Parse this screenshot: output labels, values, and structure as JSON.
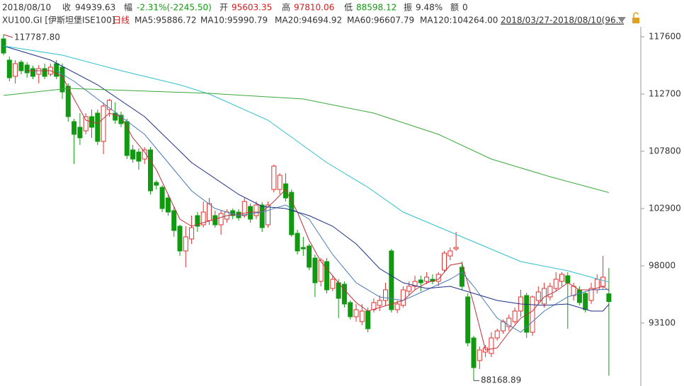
{
  "chart_data": {
    "type": "candlestick",
    "header": [
      {
        "label": "2018/08/10",
        "value": null
      },
      {
        "label": "收",
        "value": "94939.63"
      },
      {
        "label": "幅",
        "value": "-2.31%(-2245.50)"
      },
      {
        "label": "开",
        "value": "95603.35"
      },
      {
        "label": "高",
        "value": "97810.06"
      },
      {
        "label": "低",
        "value": "88598.12"
      },
      {
        "label": "振",
        "value": "9.48%"
      },
      {
        "label": "额",
        "value": "0"
      }
    ],
    "symbol": "XU100.GI [伊斯坦堡ISE100]",
    "period": "日线",
    "date_range": "2018/03/27-2018/08/10(96...",
    "up_color": "#e03030",
    "down_color": "#119911",
    "ylim": [
      87713,
      118326
    ],
    "yticks": [
      117600,
      112700,
      107800,
      102900,
      98000,
      93100
    ],
    "annotations": [
      "117787.80",
      "88168.89"
    ],
    "ohlc": [
      [
        117418,
        117787.8,
        116027,
        116208
      ],
      [
        115604,
        115906,
        113788,
        114091
      ],
      [
        114212,
        115604,
        113607,
        115301
      ],
      [
        115422,
        115604,
        114394,
        114696
      ],
      [
        115180,
        115422,
        114091,
        114514
      ],
      [
        114878,
        115120,
        113970,
        114212
      ],
      [
        114394,
        115180,
        113607,
        114878
      ],
      [
        114878,
        115301,
        113970,
        114212
      ],
      [
        114394,
        115301,
        114212,
        114998
      ],
      [
        115301,
        115604,
        113970,
        114212
      ],
      [
        114998,
        115301,
        112276,
        112881
      ],
      [
        113365,
        113607,
        110340,
        110764
      ],
      [
        110340,
        110582,
        106710,
        109251
      ],
      [
        109856,
        111066,
        108343,
        108948
      ],
      [
        109553,
        111066,
        109251,
        110764
      ],
      [
        110764,
        111369,
        108948,
        109856
      ],
      [
        111066,
        111369,
        108343,
        108646
      ],
      [
        108646,
        111974,
        107557,
        111671
      ],
      [
        111369,
        112276,
        110764,
        112155
      ],
      [
        111066,
        111974,
        110159,
        110461
      ],
      [
        110885,
        111187,
        109856,
        110159
      ],
      [
        110340,
        110582,
        107134,
        107436
      ],
      [
        107920,
        108343,
        106831,
        107134
      ],
      [
        107738,
        108041,
        106226,
        106952
      ],
      [
        107134,
        108162,
        106710,
        107920
      ],
      [
        107920,
        108162,
        104108,
        104411
      ],
      [
        105137,
        105318,
        104532,
        104895
      ],
      [
        104714,
        104895,
        102596,
        102898
      ],
      [
        103806,
        104108,
        102294,
        102596
      ],
      [
        102717,
        103080,
        100478,
        101022
      ],
      [
        101386,
        101507,
        98845,
        99269
      ],
      [
        99269,
        101386,
        97877,
        100478
      ],
      [
        100297,
        102294,
        99874,
        101265
      ],
      [
        102294,
        102596,
        100902,
        101386
      ],
      [
        101507,
        103503,
        101265,
        102596
      ],
      [
        101870,
        103806,
        101507,
        103322
      ],
      [
        102294,
        102717,
        101265,
        101507
      ],
      [
        101507,
        102717,
        100660,
        102475
      ],
      [
        101991,
        102838,
        101689,
        102596
      ],
      [
        102717,
        102898,
        101991,
        102294
      ],
      [
        102596,
        102838,
        101870,
        102112
      ],
      [
        102294,
        103806,
        102112,
        103503
      ],
      [
        103080,
        103322,
        101689,
        101991
      ],
      [
        102294,
        103503,
        101991,
        103201
      ],
      [
        103201,
        103443,
        100902,
        101265
      ],
      [
        101507,
        103503,
        101265,
        103201
      ],
      [
        104532,
        106649,
        104290,
        106528
      ],
      [
        104532,
        105924,
        104108,
        105742
      ],
      [
        105016,
        105924,
        103503,
        103806
      ],
      [
        104290,
        104532,
        100478,
        100660
      ],
      [
        100781,
        101084,
        98966,
        99269
      ],
      [
        99571,
        100478,
        98845,
        99450
      ],
      [
        99692,
        99874,
        97635,
        97877
      ],
      [
        98664,
        98966,
        95336,
        96546
      ],
      [
        96667,
        98664,
        96244,
        98482
      ],
      [
        98361,
        98664,
        95639,
        95941
      ],
      [
        96062,
        97151,
        95820,
        96848
      ],
      [
        96546,
        96848,
        93521,
        95215
      ],
      [
        96425,
        96667,
        94428,
        94731
      ],
      [
        94852,
        95033,
        93400,
        93642
      ],
      [
        93642,
        94731,
        93219,
        94247
      ],
      [
        93219,
        94731,
        92916,
        94126
      ],
      [
        94126,
        94428,
        92311,
        92614
      ],
      [
        94247,
        95215,
        94005,
        94852
      ],
      [
        94610,
        95457,
        94126,
        95033
      ],
      [
        95033,
        96546,
        94610,
        95941
      ],
      [
        99269,
        99450,
        94005,
        94247
      ],
      [
        94247,
        95033,
        93944,
        94731
      ],
      [
        94610,
        96244,
        94428,
        95941
      ],
      [
        95820,
        96667,
        95457,
        96244
      ],
      [
        96244,
        97151,
        95941,
        96667
      ],
      [
        96788,
        97151,
        95820,
        96546
      ],
      [
        96667,
        97454,
        96425,
        97030
      ],
      [
        96848,
        97272,
        96425,
        96667
      ],
      [
        96667,
        97454,
        96244,
        97272
      ],
      [
        97635,
        99269,
        97454,
        99087
      ],
      [
        98845,
        99571,
        98482,
        99269
      ],
      [
        99450,
        100902,
        99269,
        99571
      ],
      [
        97877,
        98361,
        95941,
        96244
      ],
      [
        95336,
        95639,
        91101,
        91403
      ],
      [
        91827,
        92008,
        88168.89,
        89286
      ],
      [
        89891,
        91101,
        89165,
        90798
      ],
      [
        90617,
        91222,
        90193,
        90980
      ],
      [
        90496,
        92311,
        90193,
        91827
      ],
      [
        91827,
        92614,
        91585,
        92432
      ],
      [
        92432,
        93400,
        92190,
        93219
      ],
      [
        92795,
        93824,
        92432,
        93521
      ],
      [
        93219,
        94428,
        93037,
        94126
      ],
      [
        94126,
        95941,
        93642,
        95336
      ],
      [
        95457,
        95699,
        91827,
        92311
      ],
      [
        92311,
        95457,
        92008,
        95336
      ],
      [
        95033,
        96244,
        94731,
        95760
      ],
      [
        94731,
        96546,
        94428,
        96062
      ],
      [
        95336,
        96546,
        95033,
        96244
      ],
      [
        96062,
        97454,
        95820,
        96848
      ],
      [
        96667,
        97454,
        96244,
        97272
      ],
      [
        97151,
        97454,
        92614,
        96546
      ],
      [
        95457,
        96546,
        95033,
        96244
      ],
      [
        95941,
        96244,
        94610,
        94852
      ],
      [
        95639,
        95820,
        94005,
        94247
      ],
      [
        95033,
        96546,
        94731,
        96062
      ],
      [
        95941,
        97272,
        95639,
        96848
      ],
      [
        96244,
        98845,
        95941,
        97030
      ],
      [
        95603.35,
        97810.06,
        88598.12,
        94939.63
      ]
    ],
    "series": [
      {
        "name": "MA5:95886.72",
        "color": "#c0303a",
        "x": [
          4,
          8,
          10,
          12,
          14,
          16,
          18,
          20,
          22,
          24,
          26,
          28,
          30,
          32,
          34,
          36,
          38,
          40,
          42,
          44,
          46,
          48,
          50,
          52,
          54,
          56,
          58,
          60,
          62,
          64,
          66,
          68,
          70,
          72,
          74,
          76,
          78,
          80,
          82,
          84,
          86,
          88,
          90,
          92,
          94,
          96,
          98,
          100,
          102,
          103
        ],
        "values": [
          114696,
          114696,
          114212,
          112276,
          110461,
          110159,
          111066,
          110764,
          108948,
          107738,
          106226,
          104108,
          101991,
          101386,
          101689,
          101991,
          102294,
          102415,
          102596,
          102596,
          103503,
          104532,
          102596,
          100176,
          98361,
          97151,
          95941,
          94852,
          94126,
          94428,
          94731,
          95033,
          95941,
          96546,
          96848,
          98058,
          98240,
          94731,
          90798,
          90980,
          92311,
          93521,
          94126,
          95336,
          95820,
          96546,
          95941,
          95941,
          96244,
          95886.72
        ]
      },
      {
        "name": "MA10:95990.79",
        "color": "#4a7ab8",
        "x": [
          9,
          12,
          16,
          20,
          24,
          28,
          32,
          36,
          40,
          44,
          48,
          52,
          56,
          60,
          64,
          68,
          72,
          76,
          78,
          80,
          84,
          88,
          92,
          96,
          100,
          103
        ],
        "values": [
          114696,
          113788,
          112276,
          110764,
          109251,
          106831,
          104411,
          102898,
          102294,
          102596,
          103201,
          101991,
          98966,
          96546,
          95336,
          95033,
          95941,
          96848,
          97454,
          96244,
          93521,
          92311,
          94126,
          95336,
          95941,
          95990.79
        ]
      },
      {
        "name": "MA20:94694.92",
        "color": "#1c2f86",
        "x": [
          0,
          8,
          16,
          24,
          32,
          40,
          44,
          48,
          52,
          56,
          60,
          64,
          68,
          72,
          76,
          80,
          84,
          88,
          92,
          96,
          100,
          102,
          103
        ],
        "values": [
          116813,
          115604,
          113486,
          110764,
          106831,
          104108,
          103080,
          102898,
          102294,
          101386,
          99874,
          97756,
          96546,
          96062,
          96244,
          95639,
          95033,
          94731,
          94610,
          94731,
          94126,
          94126,
          94694.92
        ]
      },
      {
        "name": "MA60:96607.79",
        "color": "#2ec0d0",
        "x": [
          0,
          10,
          20,
          30,
          35,
          45,
          55,
          62,
          68,
          78,
          88,
          96,
          103
        ],
        "values": [
          116813,
          116027,
          114696,
          113486,
          112700,
          110461,
          106831,
          104714,
          102596,
          100478,
          98361,
          97575,
          96607.79
        ]
      },
      {
        "name": "MA120:104264.00",
        "color": "#3aa83a",
        "x": [
          0,
          11,
          35,
          51,
          63,
          74,
          83,
          93,
          103
        ],
        "values": [
          112579,
          113184,
          112760,
          112276,
          111066,
          109251,
          107134,
          105621,
          104264.0
        ]
      }
    ]
  }
}
